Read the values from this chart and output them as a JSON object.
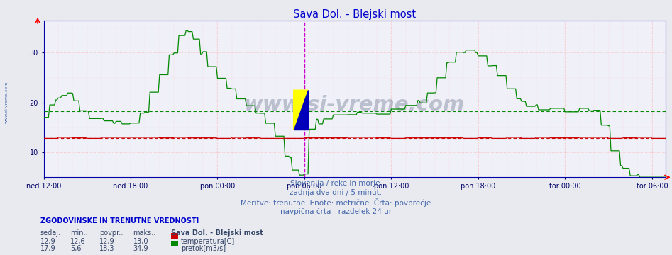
{
  "title": "Sava Dol. - Blejski most",
  "title_color": "#0000cc",
  "bg_color": "#e8eaf0",
  "plot_bg_color": "#f0f0f8",
  "ylim": [
    5.0,
    36.5
  ],
  "yticks": [
    10,
    20,
    30
  ],
  "x_labels": [
    "ned 12:00",
    "ned 18:00",
    "pon 00:00",
    "pon 06:00",
    "pon 12:00",
    "pon 18:00",
    "tor 00:00",
    "tor 06:00"
  ],
  "temp_color": "#cc0000",
  "flow_color": "#008800",
  "avg_temp": 12.9,
  "avg_flow": 18.3,
  "grid_major_color": "#ffaaaa",
  "grid_minor_color": "#ffcccc",
  "vline_color": "#cc00cc",
  "subtitle1": "Slovenija / reke in morje.",
  "subtitle2": "zadnja dva dni / 5 minut.",
  "subtitle3": "Meritve: trenutne  Enote: metrične  Črta: povprečje",
  "subtitle4": "navpična črta - razdelek 24 ur",
  "subtitle_color": "#4466aa",
  "legend_title": "ZGODOVINSKE IN TRENUTNE VREDNOSTI",
  "legend_color": "#0000cc",
  "col_headers": [
    "sedaj:",
    "min.:",
    "povpr.:",
    "maks.:"
  ],
  "temp_row": [
    "12,9",
    "12,6",
    "12,9",
    "13,0"
  ],
  "flow_row": [
    "17,9",
    "5,6",
    "18,3",
    "34,9"
  ],
  "station_label": "Sava Dol. - Blejski most",
  "temp_label": "temperatura[C]",
  "flow_label": "pretok[m3/s]",
  "watermark": "www.si-vreme.com",
  "watermark_color": "#334466",
  "watermark_alpha": 0.28,
  "left_label": "www.si-vreme.com"
}
